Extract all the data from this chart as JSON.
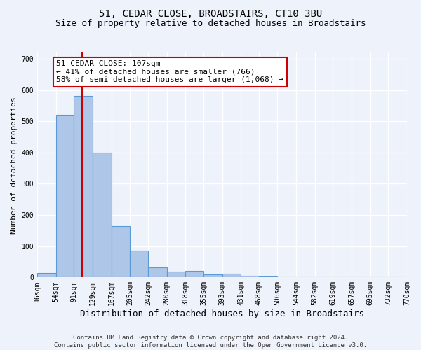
{
  "title": "51, CEDAR CLOSE, BROADSTAIRS, CT10 3BU",
  "subtitle": "Size of property relative to detached houses in Broadstairs",
  "xlabel": "Distribution of detached houses by size in Broadstairs",
  "ylabel": "Number of detached properties",
  "bin_edges": [
    16,
    54,
    91,
    129,
    167,
    205,
    242,
    280,
    318,
    355,
    393,
    431,
    468,
    506,
    544,
    582,
    619,
    657,
    695,
    732,
    770
  ],
  "bar_heights": [
    15,
    520,
    580,
    400,
    165,
    85,
    32,
    18,
    20,
    10,
    12,
    5,
    2,
    0,
    0,
    0,
    0,
    0,
    0,
    0
  ],
  "bar_color": "#aec6e8",
  "bar_edge_color": "#5b9bd5",
  "property_size": 107,
  "red_line_color": "#cc0000",
  "annotation_line1": "51 CEDAR CLOSE: 107sqm",
  "annotation_line2": "← 41% of detached houses are smaller (766)",
  "annotation_line3": "58% of semi-detached houses are larger (1,068) →",
  "annotation_box_color": "#ffffff",
  "annotation_box_edge_color": "#cc0000",
  "ylim": [
    0,
    720
  ],
  "yticks": [
    0,
    100,
    200,
    300,
    400,
    500,
    600,
    700
  ],
  "footer_line1": "Contains HM Land Registry data © Crown copyright and database right 2024.",
  "footer_line2": "Contains public sector information licensed under the Open Government Licence v3.0.",
  "background_color": "#eef2fa",
  "grid_color": "#ffffff",
  "title_fontsize": 10,
  "subtitle_fontsize": 9,
  "xlabel_fontsize": 9,
  "ylabel_fontsize": 8,
  "tick_fontsize": 7,
  "annotation_fontsize": 8,
  "footer_fontsize": 6.5
}
